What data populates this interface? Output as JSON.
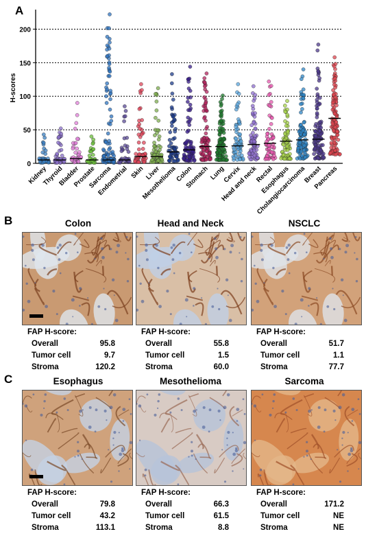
{
  "panels": {
    "a": "A",
    "b": "B",
    "c": "C"
  },
  "chart_data": {
    "type": "scatter",
    "ylabel": "H-scores",
    "xlabel": "",
    "ylim": [
      0,
      225
    ],
    "yticks": [
      0,
      50,
      100,
      150,
      200
    ],
    "grid_y": [
      50,
      100,
      150,
      200
    ],
    "grid_style": "dotted",
    "categories": [
      "Kidney",
      "Thyroid",
      "Bladder",
      "Prostate",
      "Sarcoma",
      "Endometrial",
      "Skin",
      "Liver",
      "Mesothelioma",
      "Colon",
      "Stomach",
      "Lung",
      "Cervix",
      "Head and neck",
      "Rectal",
      "Esophagus",
      "Cholangiocarcinoma",
      "Breast",
      "Pancreas"
    ],
    "colors": [
      "#3a7fc1",
      "#8a6fc9",
      "#e07fd8",
      "#6bbf3a",
      "#2f74c0",
      "#5a4a96",
      "#e0455a",
      "#7fae4f",
      "#1e3c8c",
      "#3a1f8c",
      "#b3245e",
      "#1f7a2e",
      "#5aa6dd",
      "#8f6fd0",
      "#e85ab0",
      "#a6d14a",
      "#2f86c6",
      "#4e3a8c",
      "#e0454f"
    ],
    "medians": [
      5,
      5,
      7,
      5,
      5,
      5,
      10,
      10,
      17,
      20,
      25,
      25,
      26,
      28,
      30,
      33,
      35,
      36,
      67
    ],
    "maxima": [
      43,
      52,
      90,
      40,
      222,
      85,
      118,
      112,
      133,
      144,
      134,
      101,
      118,
      115,
      122,
      93,
      140,
      177,
      158
    ],
    "counts": [
      35,
      45,
      40,
      30,
      120,
      40,
      55,
      65,
      60,
      80,
      90,
      110,
      70,
      75,
      60,
      70,
      110,
      120,
      130
    ]
  },
  "section_b": {
    "panels": [
      {
        "title": "Colon",
        "image_tone": "brown-stroma",
        "has_scale_bar": true,
        "score_title": "FAP H-score:",
        "overall_label": "Overall",
        "overall": "95.8",
        "tumor_label": "Tumor cell",
        "tumor": "9.7",
        "stroma_label": "Stroma",
        "stroma": "120.2"
      },
      {
        "title": "Head and Neck",
        "image_tone": "brown-ring",
        "has_scale_bar": false,
        "score_title": "FAP H-score:",
        "overall_label": "Overall",
        "overall": "55.8",
        "tumor_label": "Tumor cell",
        "tumor": "1.5",
        "stroma_label": "Stroma",
        "stroma": "60.0"
      },
      {
        "title": "NSCLC",
        "image_tone": "brown-diagonal",
        "has_scale_bar": false,
        "score_title": "FAP H-score:",
        "overall_label": "Overall",
        "overall": "51.7",
        "tumor_label": "Tumor cell",
        "tumor": "1.1",
        "stroma_label": "Stroma",
        "stroma": "77.7"
      }
    ]
  },
  "section_c": {
    "panels": [
      {
        "title": "Esophagus",
        "image_tone": "mixed",
        "has_scale_bar": true,
        "score_title": "FAP H-score:",
        "overall_label": "Overall",
        "overall": "79.8",
        "tumor_label": "Tumor cell",
        "tumor": "43.2",
        "stroma_label": "Stroma",
        "stroma": "113.1"
      },
      {
        "title": "Mesothelioma",
        "image_tone": "pale",
        "has_scale_bar": false,
        "score_title": "FAP H-score:",
        "overall_label": "Overall",
        "overall": "66.3",
        "tumor_label": "Tumor cell",
        "tumor": "61.5",
        "stroma_label": "Stroma",
        "stroma": "8.8"
      },
      {
        "title": "Sarcoma",
        "image_tone": "orange",
        "has_scale_bar": false,
        "score_title": "FAP H-score:",
        "overall_label": "Overall",
        "overall": "171.2",
        "tumor_label": "Tumor cell",
        "tumor": "NE",
        "stroma_label": "Stroma",
        "stroma": "NE"
      }
    ]
  }
}
